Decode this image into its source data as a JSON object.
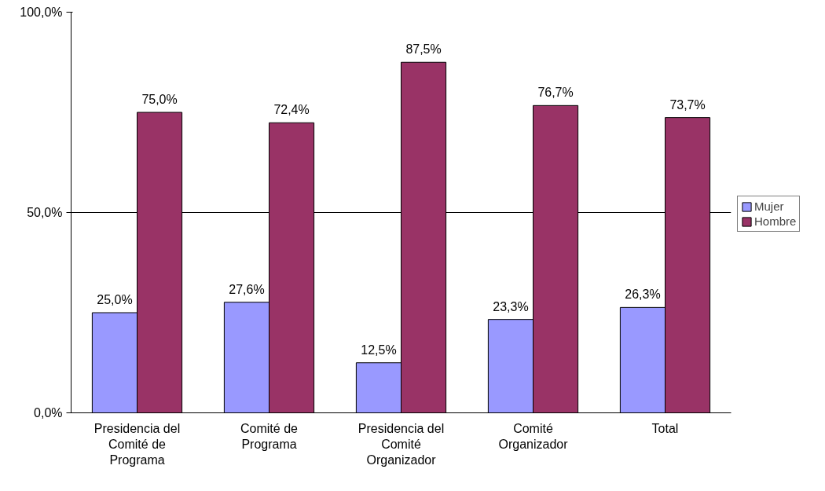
{
  "chart_data": {
    "type": "bar",
    "categories": [
      "Presidencia del\nComité de\nPrograma",
      "Comité de\nPrograma",
      "Presidencia del\nComité\nOrganizador",
      "Comité\nOrganizador",
      "Total"
    ],
    "series": [
      {
        "name": "Mujer",
        "color": "#9999ff",
        "values": [
          25.0,
          27.6,
          12.5,
          23.3,
          26.3
        ],
        "value_labels": [
          "25,0%",
          "27,6%",
          "12,5%",
          "23,3%",
          "26,3%"
        ]
      },
      {
        "name": "Hombre",
        "color": "#993366",
        "values": [
          75.0,
          72.4,
          87.5,
          76.7,
          73.7
        ],
        "value_labels": [
          "75,0%",
          "72,4%",
          "87,5%",
          "76,7%",
          "73,7%"
        ]
      }
    ],
    "ylim": [
      0,
      100
    ],
    "yticks": [
      {
        "value": 0,
        "label": "0,0%"
      },
      {
        "value": 50,
        "label": "50,0%"
      },
      {
        "value": 100,
        "label": "100,0%"
      }
    ],
    "grid": "y",
    "legend": "right"
  }
}
